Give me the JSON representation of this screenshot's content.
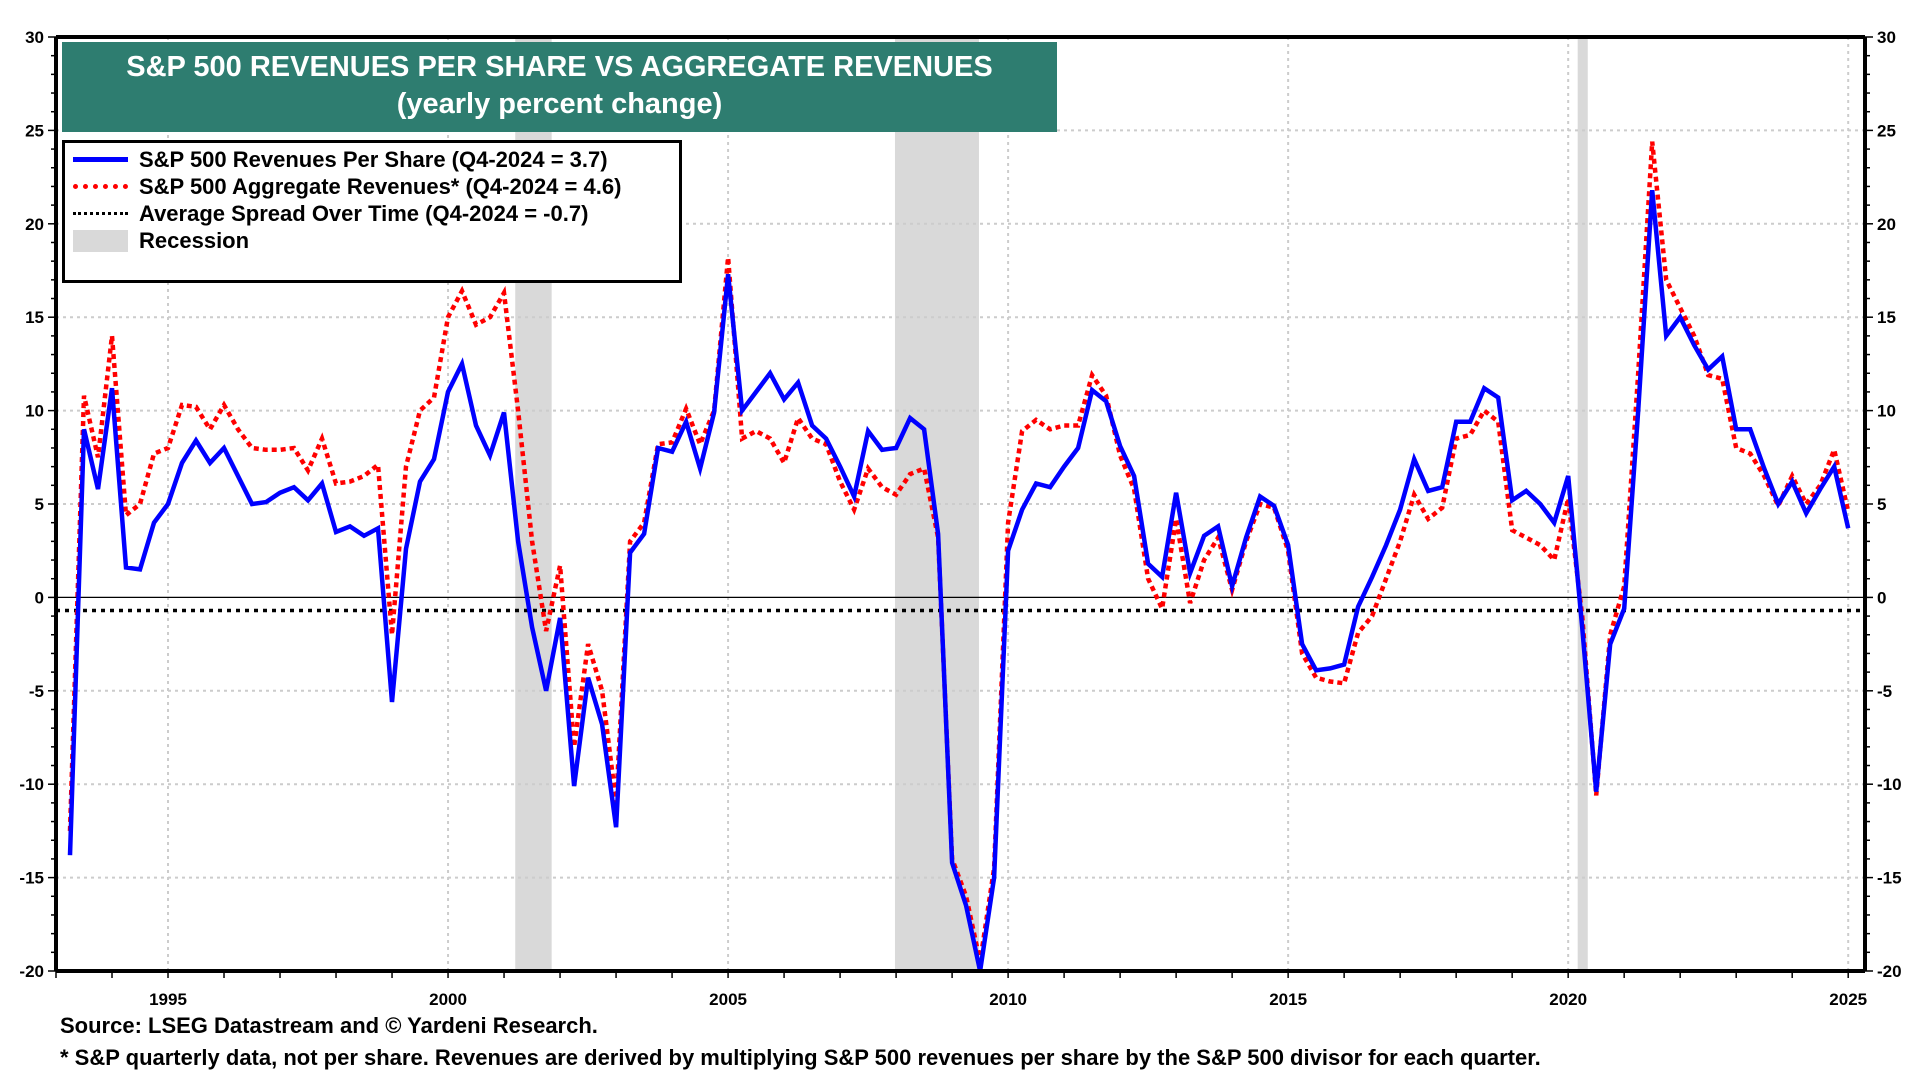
{
  "chart_data": {
    "type": "line",
    "title": "S&P 500 REVENUES PER SHARE VS AGGREGATE REVENUES",
    "subtitle": "(yearly percent change)",
    "xlabel": "",
    "ylabel": "",
    "xlim": [
      1993.0,
      2025.3
    ],
    "ylim": [
      -20,
      30
    ],
    "y_ticks": [
      30,
      25,
      20,
      15,
      10,
      5,
      0,
      -5,
      -10,
      -15,
      -20
    ],
    "x_ticks": [
      1995,
      2000,
      2005,
      2010,
      2015,
      2020,
      2025
    ],
    "grid": true,
    "legend_placement": "top-left",
    "x_start": 1993.25,
    "x_step": 0.25,
    "series": [
      {
        "name": "S&P 500 Revenues Per Share (Q4-2024 = 3.7)",
        "color": "#0000ff",
        "style": "solid",
        "values": [
          -13.8,
          9.0,
          5.8,
          11.2,
          1.6,
          1.5,
          4.0,
          5.0,
          7.2,
          8.4,
          7.2,
          8.0,
          6.5,
          5.0,
          5.1,
          5.6,
          5.9,
          5.2,
          6.1,
          3.5,
          3.8,
          3.3,
          3.7,
          -5.6,
          2.6,
          6.2,
          7.4,
          11.0,
          12.5,
          9.2,
          7.6,
          9.9,
          3.0,
          -1.6,
          -5.0,
          -1.1,
          -10.1,
          -4.3,
          -6.8,
          -12.3,
          2.4,
          3.4,
          8.0,
          7.8,
          9.4,
          6.9,
          9.9,
          17.3,
          10.0,
          11.0,
          12.0,
          10.6,
          11.5,
          9.2,
          8.5,
          7.0,
          5.4,
          8.9,
          7.9,
          8.0,
          9.6,
          9.0,
          3.4,
          -14.2,
          -16.5,
          -20.0,
          -15.0,
          2.5,
          4.7,
          6.1,
          5.9,
          7.0,
          8.0,
          11.1,
          10.5,
          8.1,
          6.5,
          1.8,
          1.1,
          5.6,
          1.3,
          3.3,
          3.8,
          0.6,
          3.2,
          5.4,
          4.9,
          2.8,
          -2.5,
          -3.9,
          -3.8,
          -3.6,
          -0.5,
          1.1,
          2.8,
          4.7,
          7.4,
          5.7,
          5.9,
          9.4,
          9.4,
          11.2,
          10.7,
          5.2,
          5.7,
          5.0,
          4.0,
          6.5,
          -1.6,
          -10.4,
          -2.5,
          -0.6,
          10.0,
          21.8,
          14.0,
          15.0,
          13.5,
          12.2,
          12.9,
          9.0,
          9.0,
          6.9,
          5.0,
          6.2,
          4.5,
          5.8,
          7.0,
          3.7
        ]
      },
      {
        "name": "S&P 500 Aggregate Revenues* (Q4-2024 = 4.6)",
        "color": "#ff0000",
        "style": "dotted",
        "values": [
          -12.5,
          10.8,
          7.5,
          14.0,
          4.4,
          5.0,
          7.7,
          8.0,
          10.3,
          10.2,
          9.0,
          10.3,
          9.0,
          8.0,
          7.9,
          7.9,
          8.0,
          6.8,
          8.5,
          6.1,
          6.2,
          6.5,
          7.1,
          -2.0,
          7.0,
          10.0,
          10.7,
          15.0,
          16.4,
          14.6,
          15.0,
          16.3,
          10.0,
          3.0,
          -1.8,
          1.7,
          -8.0,
          -2.5,
          -5.0,
          -11.0,
          3.0,
          4.0,
          8.2,
          8.3,
          10.1,
          8.2,
          10.0,
          18.2,
          8.5,
          8.9,
          8.5,
          7.2,
          9.6,
          8.5,
          8.2,
          6.2,
          4.7,
          6.9,
          5.9,
          5.5,
          6.6,
          6.9,
          3.2,
          -14.0,
          -16.0,
          -19.5,
          -14.5,
          4.0,
          8.9,
          9.5,
          9.0,
          9.2,
          9.2,
          11.9,
          10.8,
          7.6,
          5.8,
          1.0,
          -0.6,
          4.2,
          -0.3,
          2.0,
          3.2,
          0.4,
          3.0,
          5.0,
          4.8,
          2.5,
          -3.0,
          -4.3,
          -4.5,
          -4.6,
          -1.9,
          -1.0,
          1.0,
          3.0,
          5.5,
          4.2,
          4.8,
          8.5,
          8.7,
          10.0,
          9.4,
          3.6,
          3.2,
          2.8,
          2.0,
          5.3,
          -1.0,
          -10.6,
          -2.0,
          0.6,
          12.0,
          24.4,
          17.0,
          15.5,
          14.0,
          11.9,
          11.7,
          8.0,
          7.7,
          6.5,
          4.9,
          6.5,
          5.0,
          6.0,
          7.9,
          4.6
        ]
      },
      {
        "name": "Average Spread Over Time (Q4-2024 = -0.7)",
        "color": "#000000",
        "style": "dotted",
        "constant": -0.7
      }
    ],
    "recessions": [
      {
        "start": 2001.2,
        "end": 2001.85
      },
      {
        "start": 2007.98,
        "end": 2009.48
      },
      {
        "start": 2020.17,
        "end": 2020.35
      }
    ],
    "legend": [
      {
        "key": "blue",
        "label": "S&P 500 Revenues Per Share (Q4-2024 = 3.7)"
      },
      {
        "key": "red",
        "label": "S&P 500 Aggregate Revenues* (Q4-2024 = 4.6)"
      },
      {
        "key": "black",
        "label": "Average Spread Over Time (Q4-2024 = -0.7)"
      },
      {
        "key": "gray",
        "label": "Recession"
      }
    ]
  },
  "footer": {
    "source": "Source: LSEG Datastream and © Yardeni Research.",
    "note": "* S&P quarterly data, not per share. Revenues are derived by multiplying S&P 500 revenues per share by the S&P 500 divisor for each quarter."
  },
  "colors": {
    "title_bg": "#2e7d70",
    "recession": "#d9d9d9",
    "grid": "#cccccc"
  }
}
